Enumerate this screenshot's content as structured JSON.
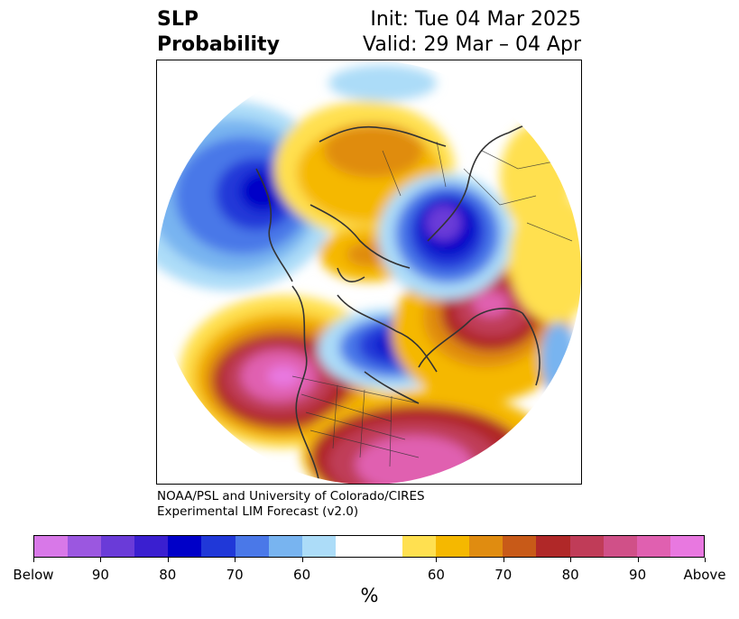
{
  "header": {
    "title_line1": "SLP",
    "title_line2": "Probability",
    "init": "Init: Tue 04 Mar 2025",
    "valid": "Valid: 29 Mar – 04 Apr"
  },
  "credit": {
    "line1": "NOAA/PSL and University of Colorado/CIRES",
    "line2": "Experimental LIM Forecast (v2.0)"
  },
  "colorbar": {
    "colors": [
      "#d878e8",
      "#9b57e0",
      "#6a3bd8",
      "#3a1fd0",
      "#0000c8",
      "#2038d8",
      "#4a78e8",
      "#78b4f0",
      "#acdcf8",
      "#ffffff",
      "#ffffff",
      "#ffe050",
      "#f5b800",
      "#e08c10",
      "#c85a18",
      "#b02828",
      "#c03c58",
      "#d05088",
      "#e060b0",
      "#e878e0"
    ],
    "tick_labels": [
      "Below",
      "90",
      "80",
      "70",
      "60",
      "60",
      "70",
      "80",
      "90",
      "Above"
    ],
    "label": "%"
  },
  "map": {
    "color_below_high": "#0000c8",
    "color_above_high": "#d05088",
    "color_land_lines": "#333333"
  }
}
